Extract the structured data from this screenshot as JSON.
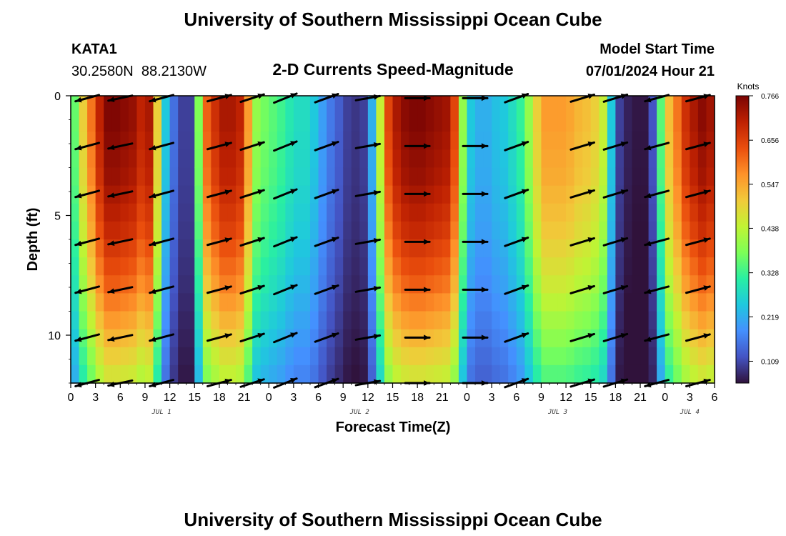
{
  "title": "University of Southern Mississippi Ocean Cube",
  "footer_title": "University of Southern Mississippi Ocean Cube",
  "station": {
    "id": "KATA1",
    "coords": "30.2580N  88.2130W"
  },
  "plot_title": "2-D Currents Speed-Magnitude",
  "model": {
    "label": "Model Start Time",
    "value": "07/01/2024 Hour 21"
  },
  "chart_data": {
    "type": "heatmap",
    "title": "2-D Currents Speed-Magnitude",
    "xlabel": "Forecast Time(Z)",
    "ylabel": "Depth (ft)",
    "x_start_hour": 0,
    "x_end_hour": 78,
    "xlim": [
      0,
      78
    ],
    "ylim": [
      0,
      12
    ],
    "y_inverted": true,
    "x_tick_labels": [
      "0",
      "3",
      "6",
      "9",
      "12",
      "15",
      "18",
      "21",
      "0",
      "3",
      "6",
      "9",
      "12",
      "15",
      "18",
      "21",
      "0",
      "3",
      "6",
      "9",
      "12",
      "15",
      "18",
      "21",
      "0",
      "3",
      "6"
    ],
    "y_ticks": [
      0,
      5,
      10
    ],
    "date_labels": [
      {
        "text": "JUL 1",
        "hour": 11
      },
      {
        "text": "JUL 2",
        "hour": 35
      },
      {
        "text": "JUL 3",
        "hour": 59
      },
      {
        "text": "JUL 4",
        "hour": 75
      }
    ],
    "colorbar": {
      "unit": "Knots",
      "min": 0.055,
      "max": 0.766,
      "tick_labels": [
        "0.766",
        "0.656",
        "0.547",
        "0.438",
        "0.328",
        "0.219",
        "0.109"
      ],
      "tick_values": [
        0.766,
        0.656,
        0.547,
        0.438,
        0.328,
        0.219,
        0.109
      ],
      "colors": [
        "#30123b",
        "#4454c4",
        "#4490fe",
        "#1fc8de",
        "#29efa2",
        "#7dff56",
        "#c1f334",
        "#f1ca3a",
        "#fe922a",
        "#ea4e0d",
        "#be2102",
        "#7a0403"
      ]
    },
    "surface_speed_knots": [
      0.36,
      0.5,
      0.6,
      0.7,
      0.76,
      0.76,
      0.75,
      0.74,
      0.7,
      0.72,
      0.5,
      0.25,
      0.15,
      0.1,
      0.1,
      0.38,
      0.62,
      0.68,
      0.72,
      0.72,
      0.7,
      0.56,
      0.4,
      0.37,
      0.35,
      0.33,
      0.3,
      0.28,
      0.28,
      0.25,
      0.2,
      0.16,
      0.13,
      0.1,
      0.09,
      0.1,
      0.22,
      0.45,
      0.65,
      0.72,
      0.75,
      0.76,
      0.76,
      0.75,
      0.74,
      0.73,
      0.65,
      0.4,
      0.25,
      0.22,
      0.22,
      0.24,
      0.25,
      0.28,
      0.32,
      0.4,
      0.5,
      0.56,
      0.56,
      0.56,
      0.55,
      0.53,
      0.52,
      0.5,
      0.45,
      0.25,
      0.1,
      0.07,
      0.06,
      0.06,
      0.12,
      0.35,
      0.52,
      0.6,
      0.68,
      0.72,
      0.75,
      0.73
    ],
    "depth_attenuation": [
      1.0,
      1.0,
      0.99,
      0.98,
      0.97,
      0.95,
      0.93,
      0.91,
      0.88,
      0.85,
      0.82,
      0.78,
      0.74,
      0.7,
      0.66,
      0.62
    ],
    "vector_rows_ft": [
      0.1,
      2.1,
      4.1,
      6.1,
      8.1,
      10.1,
      12.0
    ],
    "vector_times": [
      2,
      6,
      11,
      18,
      22,
      26,
      31,
      36,
      42,
      49,
      54,
      62,
      66,
      71,
      76
    ],
    "vector_angles_deg": [
      195,
      192,
      195,
      15,
      18,
      22,
      20,
      10,
      0,
      0,
      20,
      17,
      17,
      195,
      15
    ]
  }
}
